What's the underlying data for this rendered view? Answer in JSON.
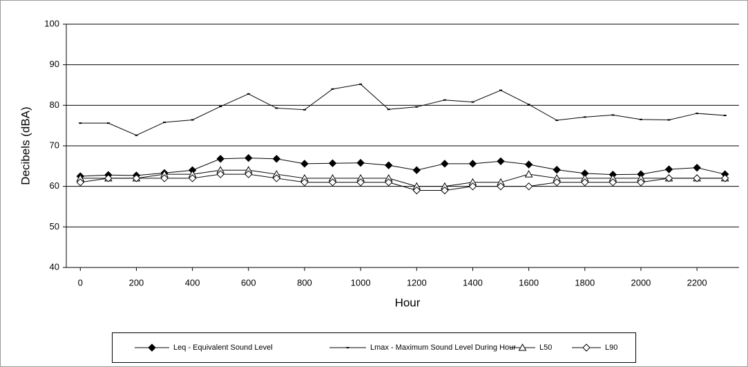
{
  "chart_data": {
    "type": "line",
    "x": [
      0,
      100,
      200,
      300,
      400,
      500,
      600,
      700,
      800,
      900,
      1000,
      1100,
      1200,
      1300,
      1400,
      1500,
      1600,
      1700,
      1800,
      1900,
      2000,
      2100,
      2200,
      2300
    ],
    "xlim": [
      -50,
      2350
    ],
    "xticks": [
      0,
      200,
      400,
      600,
      800,
      1000,
      1200,
      1400,
      1600,
      1800,
      2000,
      2200
    ],
    "ylim": [
      40,
      100
    ],
    "yticks": [
      40,
      50,
      60,
      70,
      80,
      90,
      100
    ],
    "x_label": "Hour",
    "y_label": "Decibels (dBA)",
    "grid": true,
    "legend": "bottom",
    "series": [
      {
        "name": "Leq - Equivalent Sound Level",
        "color": "#000000",
        "marker": "filled-diamond",
        "values": [
          62.5,
          62.8,
          62.7,
          63.3,
          64,
          66.8,
          67,
          66.8,
          65.6,
          65.7,
          65.8,
          65.2,
          64,
          65.6,
          65.6,
          66.2,
          65.4,
          64.1,
          63.2,
          62.9,
          63,
          64.2,
          64.6,
          63
        ]
      },
      {
        "name": "Lmax - Maximum Sound Level During Hour",
        "color": "#000000",
        "marker": "dash",
        "values": [
          75.6,
          75.6,
          72.6,
          75.8,
          76.4,
          79.7,
          82.8,
          79.3,
          78.9,
          84,
          85.2,
          79,
          79.6,
          81.3,
          80.8,
          83.7,
          80.2,
          76.3,
          77.1,
          77.6,
          76.5,
          76.4,
          78,
          77.5
        ]
      },
      {
        "name": "L50",
        "color": "#000000",
        "marker": "open-triangle",
        "values": [
          62,
          62,
          62,
          63,
          63,
          64,
          64,
          63,
          62,
          62,
          62,
          62,
          60,
          60,
          61,
          61,
          63,
          62,
          62,
          62,
          62,
          62,
          62,
          62
        ]
      },
      {
        "name": "L90",
        "color": "#000000",
        "marker": "open-diamond",
        "values": [
          61,
          62,
          62,
          62,
          62,
          63,
          63,
          62,
          61,
          61,
          61,
          61,
          59,
          59,
          60,
          60,
          60,
          61,
          61,
          61,
          61,
          62,
          62,
          62
        ]
      }
    ]
  }
}
